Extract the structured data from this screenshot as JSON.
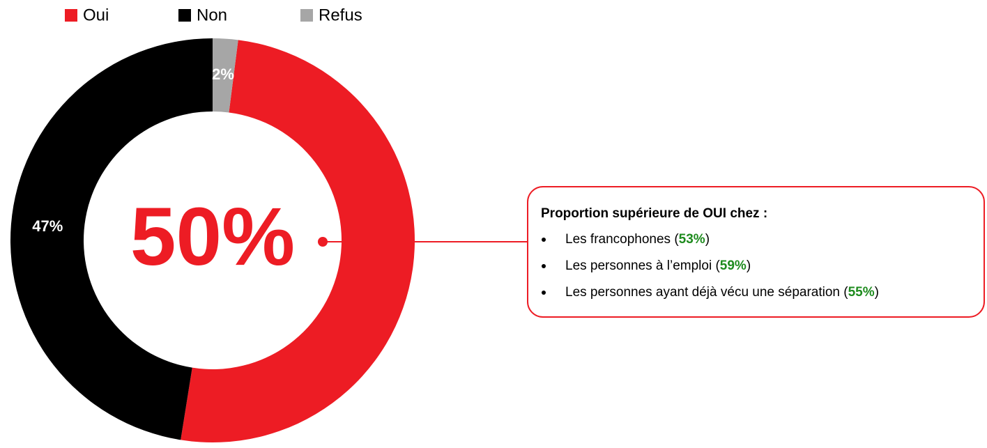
{
  "chart_data": {
    "type": "donut",
    "categories": [
      "Oui",
      "Non",
      "Refus"
    ],
    "values": [
      50,
      47,
      2
    ],
    "value_labels": [
      "50%",
      "47%",
      "2%"
    ],
    "colors": [
      "#ed1c24",
      "#000000",
      "#a6a6a6"
    ],
    "legend": "top-left",
    "annotation": {
      "title": "Proportion supérieure de OUI chez :",
      "items": [
        {
          "before": "Les francophones (",
          "value": "53%",
          "after": ")"
        },
        {
          "before": "Les personnes à l’emploi (",
          "value": "59%",
          "after": ")"
        },
        {
          "before": "Les personnes ayant déjà vécu une séparation (",
          "value": "55%",
          "after": ")"
        }
      ]
    }
  }
}
